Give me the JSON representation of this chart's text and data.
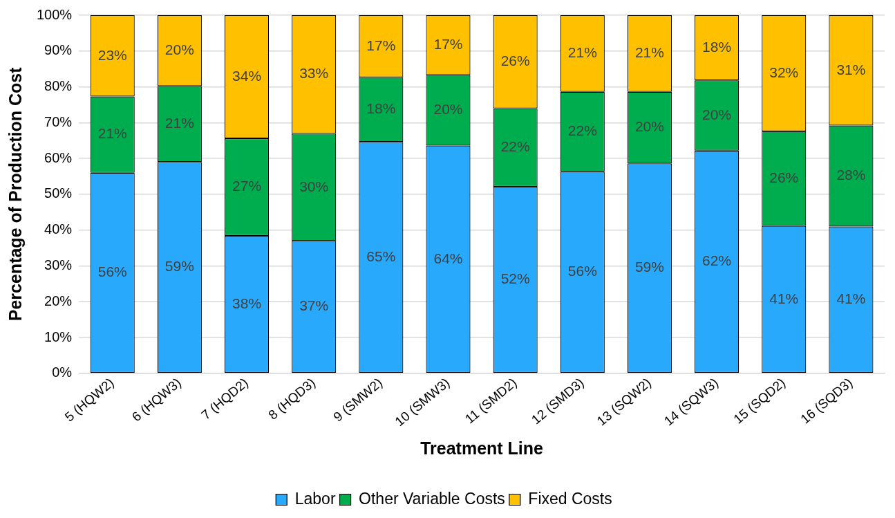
{
  "chart_data": {
    "type": "bar",
    "stacked": true,
    "xlabel": "Treatment Line",
    "ylabel": "Percentage of Production Cost",
    "categories": [
      "5 (HQW2)",
      "6 (HQW3)",
      "7 (HQD2)",
      "8 (HQD3)",
      "9 (SMW2)",
      "10 (SMW3)",
      "11 (SMD2)",
      "12 (SMD3)",
      "13 (SQW2)",
      "14 (SQW3)",
      "15 (SQD2)",
      "16 (SQD3)"
    ],
    "series": [
      {
        "name": "Labor",
        "color": "#29a9fc",
        "values": [
          56.0,
          59.0,
          38.4,
          37.0,
          64.6,
          63.6,
          52.1,
          56.3,
          58.6,
          62.2,
          41.2,
          41.0
        ],
        "value_labels": [
          "56%",
          "59%",
          "38%",
          "37%",
          "65%",
          "64%",
          "52%",
          "56%",
          "59%",
          "62%",
          "41%",
          "41%"
        ]
      },
      {
        "name": "Other Variable Costs",
        "color": "#00ad4e",
        "values": [
          21.3,
          21.2,
          27.2,
          29.9,
          18.1,
          19.7,
          21.9,
          22.3,
          20.0,
          19.6,
          26.4,
          28.2
        ],
        "value_labels": [
          "21%",
          "21%",
          "27%",
          "30%",
          "18%",
          "20%",
          "22%",
          "22%",
          "20%",
          "20%",
          "26%",
          "28%"
        ]
      },
      {
        "name": "Fixed Costs",
        "color": "#ffc000",
        "values": [
          22.7,
          19.8,
          34.4,
          33.1,
          17.3,
          16.7,
          26.0,
          21.4,
          21.4,
          18.2,
          32.4,
          30.8
        ],
        "value_labels": [
          "23%",
          "20%",
          "34%",
          "33%",
          "17%",
          "17%",
          "26%",
          "21%",
          "21%",
          "18%",
          "32%",
          "31%"
        ]
      }
    ],
    "ylim": [
      0,
      100
    ],
    "yticks": [
      {
        "value": 0,
        "label": "0%"
      },
      {
        "value": 10,
        "label": "10%"
      },
      {
        "value": 20,
        "label": "20%"
      },
      {
        "value": 30,
        "label": "30%"
      },
      {
        "value": 40,
        "label": "40%"
      },
      {
        "value": 50,
        "label": "50%"
      },
      {
        "value": 60,
        "label": "60%"
      },
      {
        "value": 70,
        "label": "70%"
      },
      {
        "value": 80,
        "label": "80%"
      },
      {
        "value": 90,
        "label": "90%"
      },
      {
        "value": 100,
        "label": "100%"
      }
    ],
    "grid": "y",
    "legend": "bottom"
  }
}
